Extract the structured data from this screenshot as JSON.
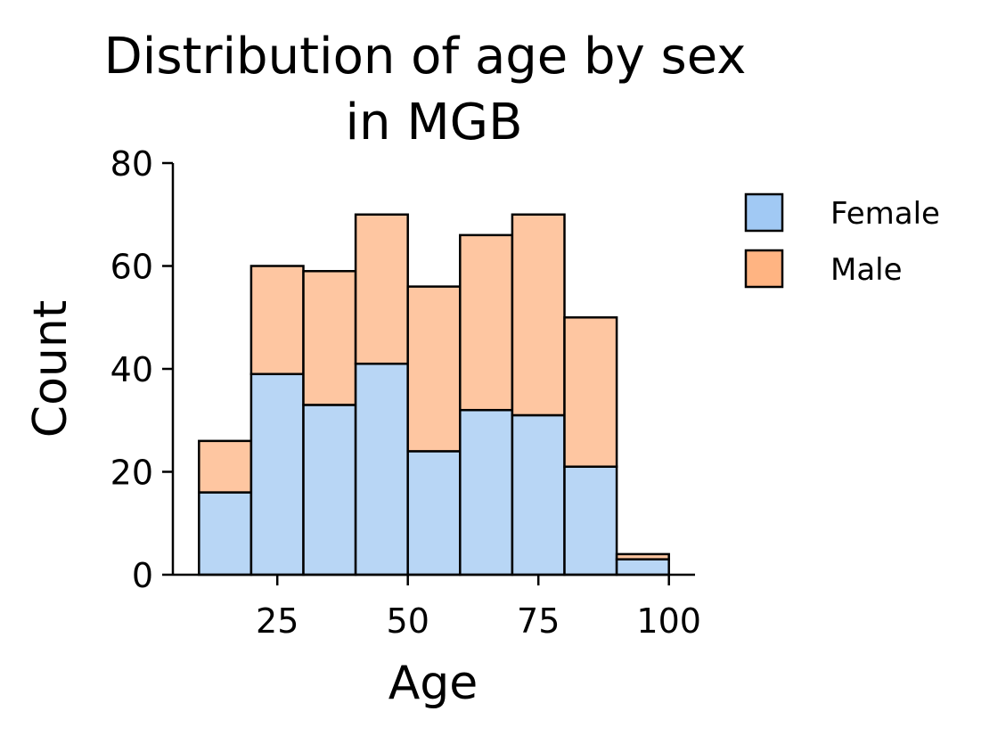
{
  "chart_data": {
    "type": "bar",
    "title_lines": [
      "Distribution of age by sex",
      "in MGB"
    ],
    "xlabel": "Age",
    "ylabel": "Count",
    "xlim": [
      5,
      105
    ],
    "ylim": [
      0,
      80
    ],
    "xticks": [
      25,
      50,
      75,
      100
    ],
    "yticks": [
      0,
      20,
      40,
      60,
      80
    ],
    "bins": [
      [
        10,
        20
      ],
      [
        20,
        30
      ],
      [
        30,
        40
      ],
      [
        40,
        50
      ],
      [
        50,
        60
      ],
      [
        60,
        70
      ],
      [
        70,
        80
      ],
      [
        80,
        90
      ],
      [
        90,
        100
      ]
    ],
    "stacked": true,
    "series": [
      {
        "name": "Female",
        "color": "#b8d6f5",
        "legend_color": "#a1c9f4",
        "values": [
          16,
          39,
          33,
          41,
          24,
          32,
          31,
          21,
          3
        ]
      },
      {
        "name": "Male",
        "color": "#fec6a1",
        "legend_color": "#ffb482",
        "values": [
          10,
          21,
          26,
          29,
          32,
          34,
          39,
          29,
          1
        ]
      }
    ],
    "legend_position": "right",
    "grid": false
  }
}
